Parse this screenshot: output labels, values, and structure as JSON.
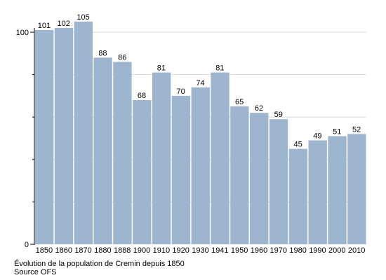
{
  "chart_data": {
    "type": "bar",
    "categories": [
      "1850",
      "1860",
      "1870",
      "1880",
      "1888",
      "1900",
      "1910",
      "1920",
      "1930",
      "1941",
      "1950",
      "1960",
      "1970",
      "1980",
      "1990",
      "2000",
      "2010"
    ],
    "values": [
      101,
      102,
      105,
      88,
      86,
      68,
      81,
      70,
      74,
      81,
      65,
      62,
      59,
      45,
      49,
      51,
      52
    ],
    "ylim": [
      0,
      100
    ],
    "yticks": [
      0,
      100
    ],
    "grid": true,
    "bar_color": "#9eb5d0",
    "grid_color": "#d9d9d9"
  },
  "caption": {
    "title": "Évolution de la population de Cremin depuis 1850",
    "source": "Source OFS"
  }
}
